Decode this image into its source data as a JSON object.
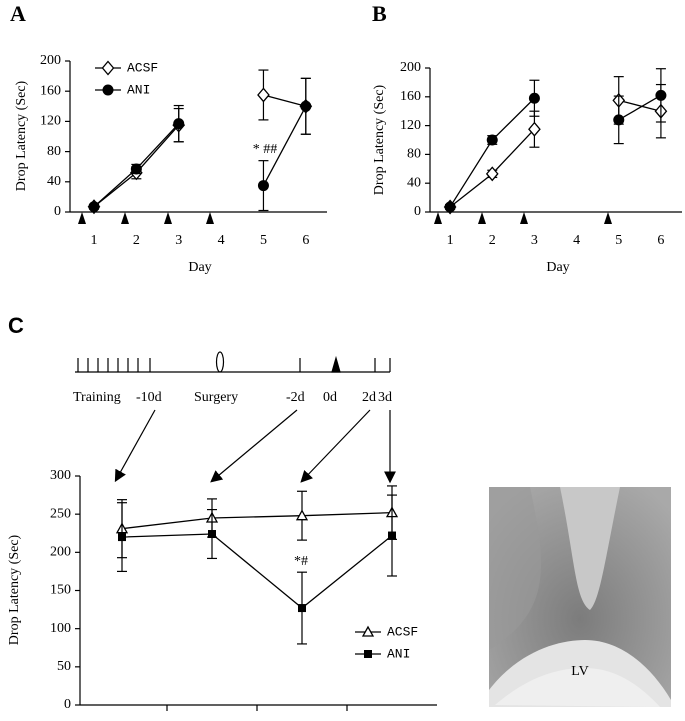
{
  "chart_data": [
    {
      "type": "line",
      "panel": "A",
      "x_label": "Day",
      "y_label": "Drop Latency (Sec)",
      "categories": [
        "1",
        "2",
        "3",
        "4",
        "5",
        "6"
      ],
      "ylim": [
        0,
        200
      ],
      "yticks": [
        0,
        40,
        80,
        120,
        160,
        200
      ],
      "grid": false,
      "series": [
        {
          "name": "ACSF",
          "color": "#000000",
          "marker": "diamond",
          "values": [
            7,
            52,
            115,
            null,
            155,
            140
          ],
          "errors": [
            3,
            8,
            22,
            null,
            33,
            37
          ]
        },
        {
          "name": "ANI",
          "color": "#000000",
          "marker": "circle",
          "values": [
            7,
            57,
            117,
            null,
            35,
            140
          ],
          "errors": [
            3,
            6,
            24,
            null,
            33,
            37
          ]
        }
      ],
      "annotations": [
        "* ##"
      ]
    },
    {
      "type": "line",
      "panel": "B",
      "x_label": "Day",
      "y_label": "Drop Latency (Sec)",
      "categories": [
        "1",
        "2",
        "3",
        "4",
        "5",
        "6"
      ],
      "ylim": [
        0,
        200
      ],
      "yticks": [
        0,
        40,
        80,
        120,
        160,
        200
      ],
      "grid": false,
      "series": [
        {
          "name": "ACSF",
          "color": "#000000",
          "marker": "diamond",
          "values": [
            7,
            53,
            115,
            null,
            155,
            140
          ],
          "errors": [
            3,
            5,
            25,
            null,
            33,
            37
          ]
        },
        {
          "name": "ANI",
          "color": "#000000",
          "marker": "circle",
          "values": [
            7,
            100,
            158,
            null,
            128,
            162
          ],
          "errors": [
            3,
            6,
            25,
            null,
            33,
            37
          ]
        }
      ]
    },
    {
      "type": "line",
      "panel": "C",
      "y_label": "Drop Latency (Sec)",
      "categories": [
        null,
        null,
        null,
        null
      ],
      "ylim": [
        0,
        300
      ],
      "yticks": [
        0,
        50,
        100,
        150,
        200,
        250,
        300
      ],
      "grid": false,
      "series": [
        {
          "name": "ACSF",
          "color": "#000000",
          "marker": "triangle",
          "values": [
            231,
            245,
            248,
            252
          ],
          "errors": [
            38,
            25,
            32,
            35
          ]
        },
        {
          "name": "ANI",
          "color": "#000000",
          "marker": "square",
          "values": [
            220,
            224,
            127,
            222
          ],
          "errors": [
            45,
            32,
            47,
            53
          ]
        }
      ],
      "annotations": [
        "*#"
      ]
    }
  ],
  "timeline": {
    "labels": [
      "Training",
      "-10d",
      "Surgery",
      "-2d",
      "0d",
      "2d",
      "3d"
    ]
  },
  "image": {
    "label": "LV"
  }
}
